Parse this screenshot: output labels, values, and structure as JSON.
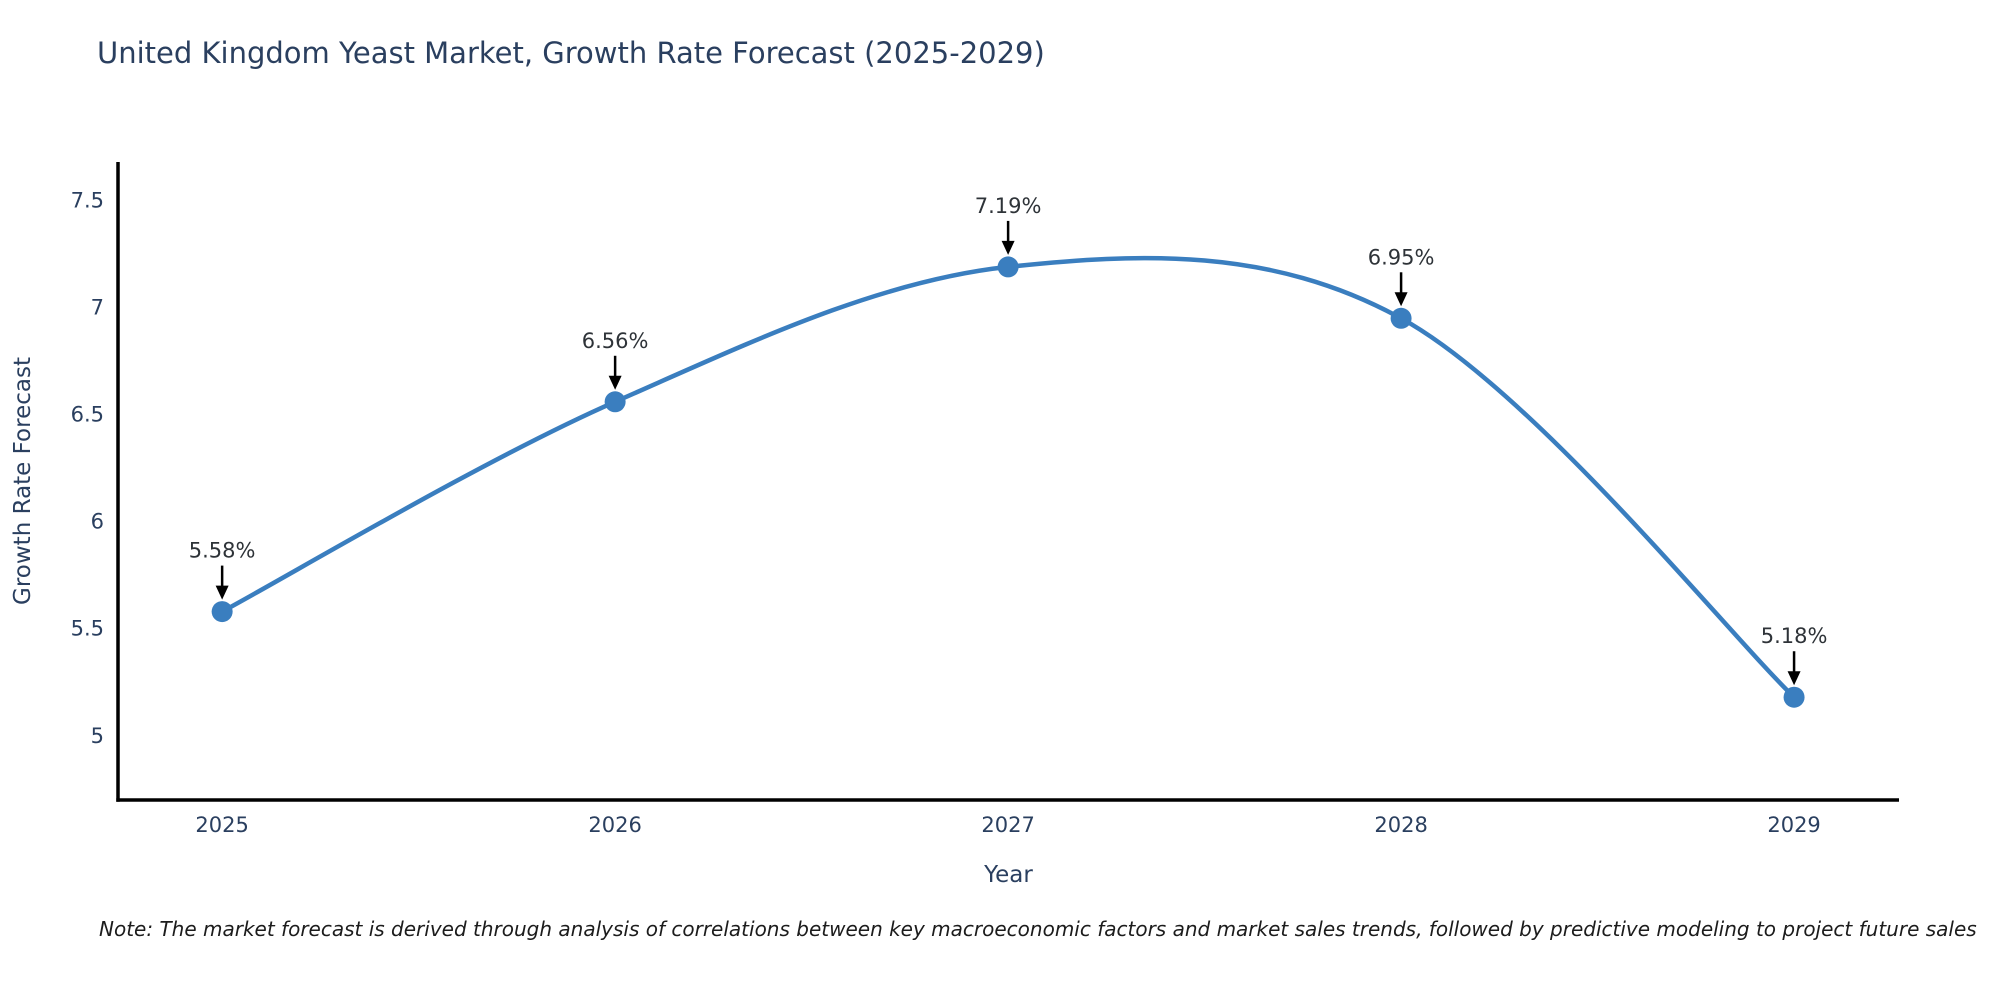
{
  "note": "Note: The market forecast is derived through analysis of correlations between key macroeconomic factors and market sales trends, followed by predictive modeling to project future sales",
  "chart_data": {
    "type": "line",
    "line_shape": "spline",
    "title": "United Kingdom Yeast Market, Growth Rate Forecast (2025-2029)",
    "xlabel": "Year",
    "ylabel": "Growth Rate Forecast",
    "x": [
      2025,
      2026,
      2027,
      2028,
      2029
    ],
    "y": [
      5.58,
      6.56,
      7.19,
      6.95,
      5.18
    ],
    "point_labels": [
      "5.58%",
      "6.56%",
      "7.19%",
      "6.95%",
      "5.18%"
    ],
    "xticks": [
      "2025",
      "2026",
      "2027",
      "2028",
      "2029"
    ],
    "yticks": [
      5,
      5.5,
      6,
      6.5,
      7,
      7.5
    ],
    "xlim": [
      2024.735,
      2029.267
    ],
    "ylim": [
      4.7,
      7.68
    ],
    "grid": false,
    "legend": "none",
    "colors": {
      "line": "#3a7ebf",
      "marker": "#3a7ebf",
      "axis": "#000000",
      "text": "#2a3f5f",
      "annotation_text": "#2e3338",
      "arrow": "#000000"
    }
  }
}
